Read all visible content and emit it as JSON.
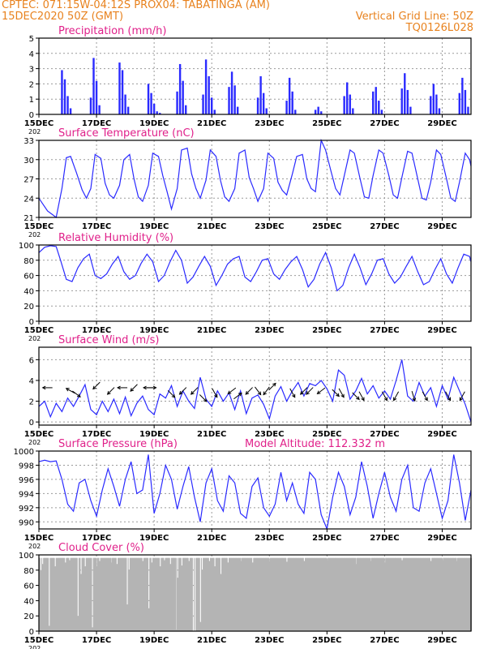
{
  "header": {
    "line1_left": "CPTEC:   071:15W-04:12S   PROX04: TABATINGA (AM)",
    "line2_left": "15DEC2020 50Z (GMT)",
    "line2_right": "Vertical Grid Line: 50Z",
    "line3_right": "TQ0126L028"
  },
  "colors": {
    "header": "#e8821e",
    "title": "#e0208a",
    "series": "#2a2aff",
    "cloud": "#b4b4b4",
    "arrow": "#000000"
  },
  "x_axis": {
    "start_day": 15,
    "end_day": 30,
    "tick_labels": [
      "15DEC",
      "17DEC",
      "19DEC",
      "21DEC",
      "23DEC",
      "25DEC",
      "27DEC",
      "29DEC"
    ],
    "tick_days": [
      15,
      17,
      19,
      21,
      23,
      25,
      27,
      29
    ],
    "year_fragment": "202"
  },
  "chart_data": [
    {
      "type": "bar",
      "title": "Precipitation (mm/h)",
      "ylim": [
        0,
        5
      ],
      "yticks": [
        0,
        1,
        2,
        3,
        4,
        5
      ],
      "x": [
        15.8,
        15.9,
        16.0,
        16.1,
        16.8,
        16.9,
        17.0,
        17.1,
        17.8,
        17.9,
        18.0,
        18.1,
        18.8,
        18.9,
        19.0,
        19.1,
        19.2,
        19.8,
        19.9,
        20.0,
        20.1,
        20.7,
        20.8,
        20.9,
        21.0,
        21.1,
        21.6,
        21.7,
        21.8,
        21.9,
        22.6,
        22.7,
        22.8,
        22.9,
        23.6,
        23.7,
        23.8,
        23.9,
        24.6,
        24.7,
        24.8,
        25.6,
        25.7,
        25.8,
        25.9,
        26.6,
        26.7,
        26.8,
        26.9,
        27.6,
        27.7,
        27.8,
        27.9,
        28.6,
        28.7,
        28.8,
        28.9,
        29.6,
        29.7,
        29.8,
        29.9
      ],
      "values": [
        2.9,
        2.3,
        1.2,
        0.4,
        1.1,
        3.7,
        2.2,
        0.6,
        3.4,
        2.9,
        1.3,
        0.5,
        2.0,
        1.4,
        0.7,
        0.2,
        0.1,
        1.5,
        3.3,
        2.2,
        0.6,
        1.3,
        3.6,
        2.5,
        1.1,
        0.3,
        1.8,
        2.8,
        1.9,
        0.5,
        1.1,
        2.5,
        1.4,
        0.4,
        0.9,
        2.4,
        1.5,
        0.3,
        0.3,
        0.5,
        0.2,
        1.2,
        2.1,
        1.3,
        0.4,
        1.5,
        1.8,
        0.9,
        0.3,
        1.7,
        2.7,
        1.6,
        0.5,
        1.2,
        2.0,
        1.3,
        0.4,
        1.4,
        2.4,
        1.6,
        0.5
      ]
    },
    {
      "type": "line",
      "title": "Surface Temperature (nC)",
      "ylim": [
        21,
        33
      ],
      "yticks": [
        21,
        24,
        27,
        30,
        33
      ],
      "x": [
        15.0,
        15.15,
        15.3,
        15.45,
        15.6,
        15.8,
        15.95,
        16.1,
        16.3,
        16.5,
        16.65,
        16.8,
        16.95,
        17.15,
        17.3,
        17.45,
        17.6,
        17.8,
        17.95,
        18.15,
        18.3,
        18.45,
        18.6,
        18.8,
        18.95,
        19.15,
        19.3,
        19.45,
        19.6,
        19.8,
        19.95,
        20.15,
        20.3,
        20.45,
        20.6,
        20.8,
        20.95,
        21.15,
        21.3,
        21.45,
        21.6,
        21.8,
        21.95,
        22.15,
        22.3,
        22.45,
        22.6,
        22.8,
        22.95,
        23.15,
        23.3,
        23.45,
        23.6,
        23.8,
        23.95,
        24.15,
        24.3,
        24.45,
        24.6,
        24.8,
        24.95,
        25.15,
        25.3,
        25.45,
        25.6,
        25.8,
        25.95,
        26.15,
        26.3,
        26.45,
        26.6,
        26.8,
        26.95,
        27.15,
        27.3,
        27.45,
        27.6,
        27.8,
        27.95,
        28.15,
        28.3,
        28.45,
        28.6,
        28.8,
        28.95,
        29.15,
        29.3,
        29.45,
        29.6,
        29.8,
        29.95,
        30.0
      ],
      "values": [
        24.0,
        23.0,
        22.0,
        21.5,
        21.0,
        25.5,
        30.3,
        30.5,
        28.0,
        25.3,
        24.0,
        25.5,
        30.8,
        30.2,
        26.3,
        24.5,
        24.0,
        26.0,
        30.0,
        30.8,
        27.0,
        24.2,
        23.5,
        26.0,
        31.0,
        30.5,
        27.5,
        25.0,
        22.3,
        25.5,
        31.5,
        31.8,
        27.8,
        25.5,
        24.0,
        26.8,
        31.5,
        30.5,
        26.8,
        24.2,
        23.5,
        25.5,
        31.0,
        31.5,
        27.2,
        25.5,
        23.5,
        25.5,
        31.0,
        30.2,
        26.5,
        25.2,
        24.5,
        27.8,
        30.5,
        30.8,
        27.0,
        25.5,
        25.0,
        33.0,
        31.5,
        28.0,
        25.5,
        24.5,
        27.5,
        31.5,
        31.0,
        27.0,
        24.2,
        24.0,
        27.5,
        31.5,
        31.0,
        27.5,
        24.5,
        24.0,
        27.2,
        31.3,
        31.0,
        27.0,
        24.0,
        23.7,
        26.5,
        31.5,
        30.8,
        27.0,
        24.0,
        23.5,
        26.5,
        31.0,
        30.0,
        29.0
      ]
    },
    {
      "type": "line",
      "title": "Relative Humidity (%)",
      "ylim": [
        0,
        100
      ],
      "yticks": [
        0,
        20,
        40,
        60,
        80,
        100
      ],
      "x": [
        15.0,
        15.2,
        15.4,
        15.6,
        15.75,
        15.95,
        16.15,
        16.35,
        16.55,
        16.75,
        16.95,
        17.15,
        17.35,
        17.55,
        17.75,
        17.95,
        18.15,
        18.35,
        18.55,
        18.75,
        18.95,
        19.15,
        19.35,
        19.55,
        19.75,
        19.95,
        20.15,
        20.35,
        20.55,
        20.75,
        20.95,
        21.15,
        21.35,
        21.55,
        21.75,
        21.95,
        22.15,
        22.35,
        22.55,
        22.75,
        22.95,
        23.15,
        23.35,
        23.55,
        23.75,
        23.95,
        24.15,
        24.35,
        24.55,
        24.75,
        24.95,
        25.15,
        25.35,
        25.55,
        25.75,
        25.95,
        26.15,
        26.35,
        26.55,
        26.75,
        26.95,
        27.15,
        27.35,
        27.55,
        27.75,
        27.95,
        28.15,
        28.35,
        28.55,
        28.75,
        28.95,
        29.15,
        29.35,
        29.55,
        29.75,
        29.95,
        30.0
      ],
      "values": [
        90,
        97,
        99,
        98,
        80,
        55,
        52,
        70,
        82,
        88,
        60,
        56,
        62,
        75,
        85,
        65,
        55,
        60,
        76,
        88,
        78,
        52,
        60,
        78,
        93,
        80,
        50,
        58,
        72,
        85,
        72,
        47,
        60,
        75,
        82,
        85,
        58,
        52,
        65,
        80,
        82,
        62,
        55,
        68,
        78,
        85,
        68,
        45,
        55,
        75,
        90,
        70,
        40,
        47,
        70,
        88,
        70,
        48,
        62,
        80,
        82,
        62,
        50,
        58,
        72,
        85,
        65,
        48,
        52,
        68,
        82,
        62,
        50,
        70,
        88,
        85,
        78
      ]
    },
    {
      "type": "line",
      "title": "Surface Wind (m/s)",
      "ylim": [
        -0.3,
        7.2
      ],
      "yticks": [
        0,
        2,
        4,
        6
      ],
      "x": [
        15.0,
        15.2,
        15.4,
        15.6,
        15.8,
        16.0,
        16.2,
        16.4,
        16.6,
        16.8,
        17.0,
        17.2,
        17.4,
        17.6,
        17.8,
        18.0,
        18.2,
        18.4,
        18.6,
        18.8,
        19.0,
        19.2,
        19.4,
        19.6,
        19.8,
        20.0,
        20.2,
        20.4,
        20.6,
        20.8,
        21.0,
        21.2,
        21.4,
        21.6,
        21.8,
        22.0,
        22.2,
        22.4,
        22.6,
        22.8,
        23.0,
        23.2,
        23.4,
        23.6,
        23.8,
        24.0,
        24.2,
        24.4,
        24.6,
        24.8,
        25.0,
        25.2,
        25.4,
        25.6,
        25.8,
        26.0,
        26.2,
        26.4,
        26.6,
        26.8,
        27.0,
        27.2,
        27.4,
        27.6,
        27.8,
        28.0,
        28.2,
        28.4,
        28.6,
        28.8,
        29.0,
        29.2,
        29.4,
        29.6,
        29.8,
        30.0
      ],
      "values": [
        1.5,
        2.0,
        0.5,
        1.8,
        1.0,
        2.3,
        1.5,
        2.5,
        3.6,
        1.2,
        0.7,
        2.0,
        1.0,
        2.2,
        0.8,
        2.4,
        0.6,
        1.8,
        2.5,
        1.2,
        0.7,
        2.7,
        2.3,
        3.5,
        1.5,
        3.0,
        2.0,
        1.3,
        4.3,
        2.2,
        1.5,
        3.0,
        2.0,
        2.8,
        1.2,
        3.0,
        0.8,
        2.3,
        2.6,
        1.7,
        0.3,
        2.5,
        3.4,
        2.0,
        3.0,
        3.8,
        2.5,
        3.7,
        3.5,
        4.0,
        3.2,
        2.0,
        5.0,
        4.5,
        2.2,
        3.0,
        4.2,
        2.7,
        3.5,
        2.3,
        3.0,
        2.2,
        4.0,
        6.0,
        2.5,
        2.0,
        3.8,
        2.5,
        3.3,
        1.5,
        3.5,
        2.2,
        4.3,
        3.0,
        1.7,
        0.0
      ]
    },
    {
      "type": "line",
      "title": "Surface Pressure (hPa)",
      "annotation": "Model Altitude: 112.332 m",
      "ylim": [
        989,
        1000
      ],
      "yticks": [
        990,
        992,
        994,
        996,
        998,
        1000
      ],
      "x": [
        15.0,
        15.2,
        15.4,
        15.6,
        15.8,
        16.0,
        16.2,
        16.4,
        16.6,
        16.8,
        17.0,
        17.2,
        17.4,
        17.6,
        17.8,
        18.0,
        18.2,
        18.4,
        18.6,
        18.8,
        19.0,
        19.2,
        19.4,
        19.6,
        19.8,
        20.0,
        20.2,
        20.4,
        20.6,
        20.8,
        21.0,
        21.2,
        21.4,
        21.6,
        21.8,
        22.0,
        22.2,
        22.4,
        22.6,
        22.8,
        23.0,
        23.2,
        23.4,
        23.6,
        23.8,
        24.0,
        24.2,
        24.4,
        24.6,
        24.8,
        25.0,
        25.2,
        25.4,
        25.6,
        25.8,
        26.0,
        26.2,
        26.4,
        26.6,
        26.8,
        27.0,
        27.2,
        27.4,
        27.6,
        27.8,
        28.0,
        28.2,
        28.4,
        28.6,
        28.8,
        29.0,
        29.2,
        29.4,
        29.6,
        29.8,
        30.0
      ],
      "values": [
        998.5,
        998.7,
        998.5,
        998.6,
        996.0,
        992.5,
        991.5,
        995.5,
        996.0,
        993.0,
        990.8,
        994.5,
        997.5,
        995.0,
        992.2,
        996.0,
        998.5,
        994.0,
        994.5,
        999.5,
        991.2,
        994.0,
        998.0,
        996.0,
        991.8,
        995.0,
        997.8,
        993.5,
        990.0,
        995.5,
        997.5,
        993.0,
        991.5,
        996.5,
        995.5,
        991.2,
        990.5,
        995.0,
        996.2,
        992.0,
        990.8,
        992.5,
        997.0,
        993.0,
        995.5,
        992.5,
        991.2,
        997.0,
        996.0,
        991.0,
        989.0,
        993.5,
        997.0,
        995.0,
        991.0,
        993.5,
        998.5,
        995.0,
        990.5,
        994.0,
        997.0,
        993.5,
        991.5,
        996.0,
        998.0,
        992.0,
        991.5,
        995.5,
        997.5,
        994.0,
        990.5,
        993.0,
        999.5,
        995.5,
        990.2,
        994.5
      ]
    },
    {
      "type": "bar",
      "title": "Cloud Cover (%)",
      "ylim": [
        0,
        100
      ],
      "yticks": [
        0,
        20,
        40,
        60,
        80,
        100
      ],
      "base_value": 96,
      "dips": [
        [
          15.05,
          80
        ],
        [
          15.12,
          88
        ],
        [
          15.35,
          7
        ],
        [
          15.55,
          85
        ],
        [
          15.9,
          90
        ],
        [
          16.05,
          93
        ],
        [
          16.35,
          20
        ],
        [
          16.45,
          75
        ],
        [
          16.6,
          85
        ],
        [
          16.85,
          5
        ],
        [
          17.0,
          85
        ],
        [
          17.1,
          92
        ],
        [
          17.5,
          90
        ],
        [
          17.7,
          88
        ],
        [
          18.05,
          35
        ],
        [
          18.12,
          80
        ],
        [
          18.6,
          92
        ],
        [
          18.8,
          30
        ],
        [
          18.9,
          90
        ],
        [
          19.2,
          85
        ],
        [
          19.35,
          93
        ],
        [
          19.55,
          88
        ],
        [
          19.75,
          2
        ],
        [
          19.8,
          70
        ],
        [
          19.95,
          86
        ],
        [
          20.2,
          92
        ],
        [
          20.35,
          0
        ],
        [
          20.4,
          0
        ],
        [
          20.6,
          12
        ],
        [
          20.65,
          80
        ],
        [
          20.9,
          92
        ],
        [
          21.1,
          85
        ],
        [
          21.3,
          75
        ],
        [
          21.55,
          90
        ],
        [
          22.0,
          92
        ],
        [
          22.4,
          90
        ],
        [
          23.0,
          92
        ],
        [
          23.6,
          91
        ],
        [
          24.2,
          92
        ],
        [
          25.0,
          93
        ],
        [
          26.0,
          88
        ],
        [
          26.5,
          92
        ],
        [
          27.0,
          90
        ],
        [
          27.6,
          93
        ],
        [
          28.6,
          92
        ],
        [
          29.0,
          93
        ],
        [
          29.5,
          92
        ]
      ]
    }
  ],
  "wind_arrows": [
    {
      "x": 15.3,
      "y": 3.3,
      "d": [
        -1,
        0
      ]
    },
    {
      "x": 16.1,
      "y": 3.0,
      "d": [
        -0.9,
        0.5
      ]
    },
    {
      "x": 16.3,
      "y": 2.7,
      "d": [
        0.8,
        -0.6
      ]
    },
    {
      "x": 17.0,
      "y": 3.5,
      "d": [
        -0.7,
        -0.7
      ]
    },
    {
      "x": 17.5,
      "y": 3.0,
      "d": [
        -0.7,
        -0.7
      ]
    },
    {
      "x": 17.9,
      "y": 3.3,
      "d": [
        -1,
        0
      ]
    },
    {
      "x": 18.3,
      "y": 3.3,
      "d": [
        -0.7,
        -0.7
      ]
    },
    {
      "x": 18.8,
      "y": 3.3,
      "d": [
        -1,
        0
      ]
    },
    {
      "x": 18.9,
      "y": 3.3,
      "d": [
        1,
        0
      ]
    },
    {
      "x": 19.6,
      "y": 2.7,
      "d": [
        0.7,
        -0.7
      ]
    },
    {
      "x": 20.0,
      "y": 3.0,
      "d": [
        -0.7,
        -0.7
      ]
    },
    {
      "x": 20.4,
      "y": 3.0,
      "d": [
        -0.7,
        -0.7
      ]
    },
    {
      "x": 20.7,
      "y": 2.3,
      "d": [
        0.7,
        -0.7
      ]
    },
    {
      "x": 21.1,
      "y": 2.8,
      "d": [
        0.5,
        -0.9
      ]
    },
    {
      "x": 21.7,
      "y": 3.0,
      "d": [
        -0.8,
        -0.6
      ]
    },
    {
      "x": 21.9,
      "y": 2.5,
      "d": [
        0.8,
        0.6
      ]
    },
    {
      "x": 22.3,
      "y": 3.0,
      "d": [
        -0.7,
        -0.7
      ]
    },
    {
      "x": 22.6,
      "y": 3.0,
      "d": [
        0.6,
        -0.8
      ]
    },
    {
      "x": 22.9,
      "y": 3.0,
      "d": [
        -0.6,
        -0.8
      ]
    },
    {
      "x": 23.1,
      "y": 3.4,
      "d": [
        0.7,
        0.7
      ]
    },
    {
      "x": 23.8,
      "y": 2.8,
      "d": [
        0.5,
        -0.9
      ]
    },
    {
      "x": 24.2,
      "y": 3.0,
      "d": [
        -0.7,
        -0.7
      ]
    },
    {
      "x": 24.4,
      "y": 3.0,
      "d": [
        -0.7,
        -0.7
      ]
    },
    {
      "x": 24.8,
      "y": 3.0,
      "d": [
        -0.8,
        -0.6
      ]
    },
    {
      "x": 25.3,
      "y": 2.8,
      "d": [
        0.7,
        -0.7
      ]
    },
    {
      "x": 25.5,
      "y": 2.8,
      "d": [
        0.5,
        -0.9
      ]
    },
    {
      "x": 26.0,
      "y": 2.5,
      "d": [
        0.7,
        -0.7
      ]
    },
    {
      "x": 26.2,
      "y": 2.5,
      "d": [
        0.5,
        -0.9
      ]
    },
    {
      "x": 27.0,
      "y": 2.5,
      "d": [
        0.5,
        -0.9
      ]
    },
    {
      "x": 27.4,
      "y": 2.5,
      "d": [
        -0.5,
        -0.9
      ]
    },
    {
      "x": 28.0,
      "y": 2.5,
      "d": [
        0.3,
        -1
      ]
    },
    {
      "x": 28.4,
      "y": 2.5,
      "d": [
        0.5,
        -0.9
      ]
    },
    {
      "x": 29.2,
      "y": 2.5,
      "d": [
        0.5,
        -0.9
      ]
    },
    {
      "x": 29.7,
      "y": 2.5,
      "d": [
        -0.5,
        -0.9
      ]
    }
  ]
}
